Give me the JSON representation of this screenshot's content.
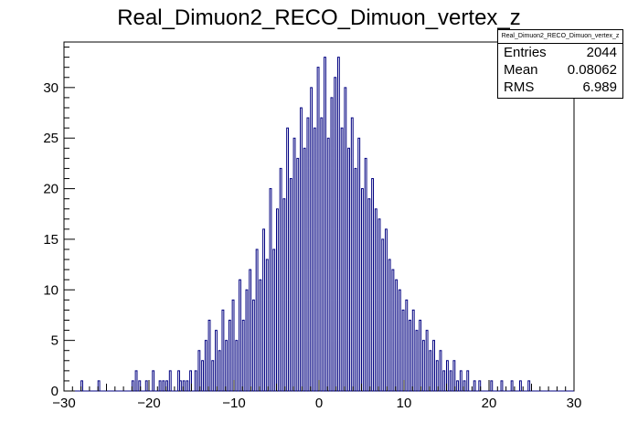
{
  "chart_data": {
    "type": "bar",
    "title": "Real_Dimuon2_RECO_Dimuon_vertex_z",
    "xlabel": "",
    "ylabel": "",
    "xlim": [
      -30,
      30
    ],
    "ylim": [
      0,
      34.5
    ],
    "x_ticks": [
      -30,
      -20,
      -10,
      0,
      10,
      20,
      30
    ],
    "y_ticks": [
      0,
      5,
      10,
      15,
      20,
      25,
      30
    ],
    "grid": false,
    "line_color": "#000080",
    "bin_width": 0.2,
    "bins": [
      [
        -28,
        1
      ],
      [
        -26,
        1
      ],
      [
        -22,
        1
      ],
      [
        -21.6,
        2
      ],
      [
        -21.2,
        1
      ],
      [
        -20.4,
        1
      ],
      [
        -19.6,
        2
      ],
      [
        -18.8,
        1
      ],
      [
        -18.4,
        1
      ],
      [
        -18.0,
        1
      ],
      [
        -17.6,
        2
      ],
      [
        -16.6,
        2
      ],
      [
        -16.4,
        1
      ],
      [
        -16.0,
        1
      ],
      [
        -15.6,
        1
      ],
      [
        -15.2,
        2
      ],
      [
        -14.6,
        2
      ],
      [
        -14.2,
        4
      ],
      [
        -13.8,
        3
      ],
      [
        -13.4,
        5
      ],
      [
        -13.0,
        7
      ],
      [
        -12.6,
        3
      ],
      [
        -12.2,
        6
      ],
      [
        -11.8,
        4
      ],
      [
        -11.4,
        8
      ],
      [
        -11.0,
        5
      ],
      [
        -10.6,
        7
      ],
      [
        -10.2,
        9
      ],
      [
        -9.8,
        5
      ],
      [
        -9.4,
        11
      ],
      [
        -9.0,
        7
      ],
      [
        -8.6,
        10
      ],
      [
        -8.2,
        12
      ],
      [
        -7.8,
        9
      ],
      [
        -7.4,
        14
      ],
      [
        -7.0,
        11
      ],
      [
        -6.6,
        16
      ],
      [
        -6.2,
        13
      ],
      [
        -5.8,
        20
      ],
      [
        -5.4,
        14
      ],
      [
        -5.0,
        18
      ],
      [
        -4.6,
        22
      ],
      [
        -4.2,
        19
      ],
      [
        -3.8,
        26
      ],
      [
        -3.4,
        21
      ],
      [
        -3.0,
        25
      ],
      [
        -2.6,
        23
      ],
      [
        -2.2,
        28
      ],
      [
        -1.8,
        24
      ],
      [
        -1.4,
        27
      ],
      [
        -1.0,
        30
      ],
      [
        -0.6,
        26
      ],
      [
        -0.2,
        32
      ],
      [
        0.2,
        27
      ],
      [
        0.6,
        33
      ],
      [
        1.0,
        25
      ],
      [
        1.4,
        29
      ],
      [
        1.8,
        31
      ],
      [
        2.2,
        33
      ],
      [
        2.6,
        26
      ],
      [
        3.0,
        30
      ],
      [
        3.4,
        24
      ],
      [
        3.8,
        27
      ],
      [
        4.2,
        22
      ],
      [
        4.6,
        25
      ],
      [
        5.0,
        20
      ],
      [
        5.4,
        23
      ],
      [
        5.8,
        19
      ],
      [
        6.2,
        21
      ],
      [
        6.6,
        18
      ],
      [
        7.0,
        17
      ],
      [
        7.4,
        15
      ],
      [
        7.8,
        16
      ],
      [
        8.2,
        13
      ],
      [
        8.6,
        12
      ],
      [
        9.0,
        11
      ],
      [
        9.4,
        10
      ],
      [
        9.8,
        8
      ],
      [
        10.2,
        9
      ],
      [
        10.6,
        7
      ],
      [
        11.0,
        8
      ],
      [
        11.4,
        6
      ],
      [
        11.8,
        7
      ],
      [
        12.2,
        5
      ],
      [
        12.6,
        6
      ],
      [
        13.0,
        4
      ],
      [
        13.4,
        5
      ],
      [
        13.8,
        3
      ],
      [
        14.2,
        4
      ],
      [
        14.6,
        2
      ],
      [
        15.0,
        3
      ],
      [
        15.4,
        2
      ],
      [
        15.8,
        3
      ],
      [
        16.2,
        1
      ],
      [
        16.6,
        2
      ],
      [
        17.0,
        1
      ],
      [
        17.4,
        2
      ],
      [
        18.2,
        1
      ],
      [
        18.8,
        1
      ],
      [
        20.2,
        1
      ],
      [
        21.4,
        1
      ],
      [
        22.6,
        1
      ],
      [
        23.6,
        1
      ],
      [
        24.6,
        1
      ]
    ]
  },
  "stats": {
    "name": "Real_Dimuon2_RECO_Dimuon_vertex_z",
    "rows": [
      {
        "label": "Entries",
        "value": "2044"
      },
      {
        "label": "Mean",
        "value": "0.08062"
      },
      {
        "label": "RMS",
        "value": "6.989"
      }
    ]
  }
}
